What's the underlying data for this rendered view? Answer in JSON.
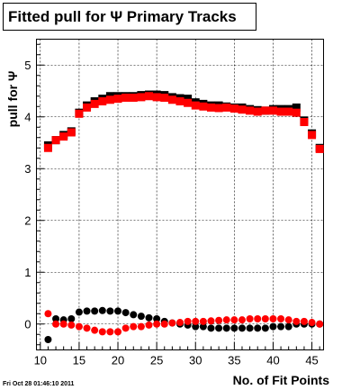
{
  "timestamp": "Fri Oct 28 01:46:10 2011",
  "colors": {
    "series_black": "#000000",
    "series_red": "#ff0000"
  },
  "chart_data": {
    "type": "scatter",
    "title": "Fitted pull for Ψ  Primary Tracks",
    "xlabel": "No. of Fit Points",
    "ylabel": "pull for Ψ",
    "xlim": [
      9.5,
      46.5
    ],
    "ylim": [
      -0.5,
      5.5
    ],
    "grid": true,
    "x_ticks": [
      10,
      15,
      20,
      25,
      30,
      35,
      40,
      45
    ],
    "y_ticks": [
      0,
      1,
      2,
      3,
      4,
      5
    ],
    "series": [
      {
        "marker": "square",
        "color": "#000000",
        "x": [
          11,
          12,
          13,
          14,
          15,
          16,
          17,
          18,
          19,
          20,
          21,
          22,
          23,
          24,
          25,
          26,
          27,
          28,
          29,
          30,
          31,
          32,
          33,
          34,
          35,
          36,
          37,
          38,
          39,
          40,
          41,
          42,
          43,
          44,
          45,
          46
        ],
        "values": [
          3.45,
          3.55,
          3.65,
          3.72,
          4.08,
          4.22,
          4.3,
          4.35,
          4.4,
          4.4,
          4.4,
          4.4,
          4.42,
          4.43,
          4.43,
          4.42,
          4.38,
          4.36,
          4.35,
          4.28,
          4.25,
          4.22,
          4.22,
          4.2,
          4.18,
          4.18,
          4.15,
          4.13,
          4.12,
          4.15,
          4.15,
          4.15,
          4.18,
          3.93,
          3.68,
          3.4
        ]
      },
      {
        "marker": "square",
        "color": "#ff0000",
        "x": [
          11,
          12,
          13,
          14,
          15,
          16,
          17,
          18,
          19,
          20,
          21,
          22,
          23,
          24,
          25,
          26,
          27,
          28,
          29,
          30,
          31,
          32,
          33,
          34,
          35,
          36,
          37,
          38,
          39,
          40,
          41,
          42,
          43,
          44,
          45,
          46
        ],
        "values": [
          3.4,
          3.55,
          3.62,
          3.7,
          4.06,
          4.18,
          4.25,
          4.3,
          4.33,
          4.35,
          4.37,
          4.37,
          4.38,
          4.4,
          4.38,
          4.37,
          4.33,
          4.3,
          4.27,
          4.22,
          4.2,
          4.18,
          4.17,
          4.18,
          4.16,
          4.14,
          4.12,
          4.1,
          4.12,
          4.12,
          4.1,
          4.1,
          4.08,
          3.9,
          3.65,
          3.38
        ]
      },
      {
        "marker": "circle",
        "color": "#000000",
        "x": [
          11,
          12,
          13,
          14,
          15,
          16,
          17,
          18,
          19,
          20,
          21,
          22,
          23,
          24,
          25,
          26,
          27,
          28,
          29,
          30,
          31,
          32,
          33,
          34,
          35,
          36,
          37,
          38,
          39,
          40,
          41,
          42,
          43,
          44,
          45,
          46
        ],
        "values": [
          -0.3,
          0.1,
          0.08,
          0.1,
          0.23,
          0.25,
          0.25,
          0.26,
          0.25,
          0.25,
          0.22,
          0.18,
          0.15,
          0.12,
          0.1,
          0.05,
          0.02,
          0.0,
          -0.02,
          -0.05,
          -0.05,
          -0.08,
          -0.08,
          -0.08,
          -0.08,
          -0.08,
          -0.08,
          -0.08,
          -0.08,
          -0.05,
          -0.05,
          -0.05,
          0.0,
          0.0,
          0.0,
          0.0
        ]
      },
      {
        "marker": "circle",
        "color": "#ff0000",
        "x": [
          11,
          12,
          13,
          14,
          15,
          16,
          17,
          18,
          19,
          20,
          21,
          22,
          23,
          24,
          25,
          26,
          27,
          28,
          29,
          30,
          31,
          32,
          33,
          34,
          35,
          36,
          37,
          38,
          39,
          40,
          41,
          42,
          43,
          44,
          45,
          46
        ],
        "values": [
          0.2,
          0.0,
          0.0,
          -0.02,
          -0.05,
          -0.08,
          -0.12,
          -0.15,
          -0.15,
          -0.15,
          -0.08,
          -0.05,
          -0.05,
          -0.02,
          0.0,
          0.0,
          0.02,
          0.03,
          0.05,
          0.05,
          0.05,
          0.06,
          0.07,
          0.08,
          0.08,
          0.08,
          0.1,
          0.1,
          0.1,
          0.1,
          0.1,
          0.08,
          0.05,
          0.05,
          0.03,
          0.0
        ]
      }
    ]
  }
}
